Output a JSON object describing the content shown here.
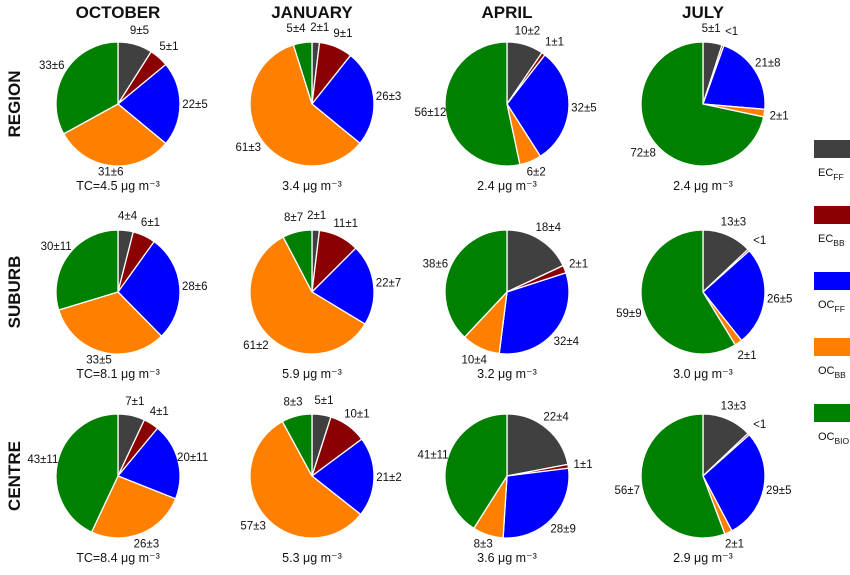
{
  "chart_data": {
    "type": "pie",
    "columns": [
      "OCTOBER",
      "JANUARY",
      "APRIL",
      "JULY"
    ],
    "rows": [
      "REGION",
      "SUBURB",
      "CENTRE"
    ],
    "legend": [
      {
        "main": "EC",
        "sub": "FF",
        "color": "#404040"
      },
      {
        "main": "EC",
        "sub": "BB",
        "color": "#8b0000"
      },
      {
        "main": "OC",
        "sub": "FF",
        "color": "#0000ff"
      },
      {
        "main": "OC",
        "sub": "BB",
        "color": "#ff8000"
      },
      {
        "main": "OC",
        "sub": "BIO",
        "color": "#008000"
      }
    ],
    "legend_placement": "right",
    "pies": [
      [
        {
          "tc": "TC=4.5 μg m⁻³",
          "values": [
            9,
            5,
            22,
            31,
            33
          ],
          "labels": [
            "9±5",
            "5±1",
            "22±5",
            "31±6",
            "33±6"
          ]
        },
        {
          "tc": "3.4 μg m⁻³",
          "values": [
            2,
            9,
            26,
            61,
            5
          ],
          "labels": [
            "2±1",
            "9±1",
            "26±3",
            "61±3",
            "5±4"
          ]
        },
        {
          "tc": "2.4 μg m⁻³",
          "values": [
            10,
            1,
            32,
            6,
            56
          ],
          "labels": [
            "10±2",
            "1±1",
            "32±5",
            "6±2",
            "56±12"
          ]
        },
        {
          "tc": "2.4 μg m⁻³",
          "values": [
            5,
            0.5,
            21,
            2,
            72
          ],
          "labels": [
            "5±1",
            "<1",
            "21±8",
            "2±1",
            "72±8"
          ]
        }
      ],
      [
        {
          "tc": "TC=8.1 μg m⁻³",
          "values": [
            4,
            6,
            28,
            33,
            30
          ],
          "labels": [
            "4±4",
            "6±1",
            "28±6",
            "33±5",
            "30±11"
          ]
        },
        {
          "tc": "5.9 μg m⁻³",
          "values": [
            2,
            11,
            22,
            61,
            8
          ],
          "labels": [
            "2±1",
            "11±1",
            "22±7",
            "61±2",
            "8±7"
          ]
        },
        {
          "tc": "3.2 μg m⁻³",
          "values": [
            18,
            2,
            32,
            10,
            38
          ],
          "labels": [
            "18±4",
            "2±1",
            "32±4",
            "10±4",
            "38±6"
          ]
        },
        {
          "tc": "3.0 μg m⁻³",
          "values": [
            13,
            0.5,
            26,
            2,
            59
          ],
          "labels": [
            "13±3",
            "<1",
            "26±5",
            "2±1",
            "59±9"
          ]
        }
      ],
      [
        {
          "tc": "TC=8.4 μg m⁻³",
          "values": [
            7,
            4,
            20,
            26,
            43
          ],
          "labels": [
            "7±1",
            "4±1",
            "20±11",
            "26±3",
            "43±11"
          ]
        },
        {
          "tc": "5.3 μg m⁻³",
          "values": [
            5,
            10,
            21,
            57,
            8
          ],
          "labels": [
            "5±1",
            "10±1",
            "21±2",
            "57±3",
            "8±3"
          ]
        },
        {
          "tc": "3.6 μg m⁻³",
          "values": [
            22,
            1,
            28,
            8,
            41
          ],
          "labels": [
            "22±4",
            "1±1",
            "28±9",
            "8±3",
            "41±11"
          ]
        },
        {
          "tc": "2.9 μg m⁻³",
          "values": [
            13,
            0.5,
            29,
            2,
            56
          ],
          "labels": [
            "13±3",
            "<1",
            "29±5",
            "2±1",
            "56±7"
          ]
        }
      ]
    ]
  }
}
